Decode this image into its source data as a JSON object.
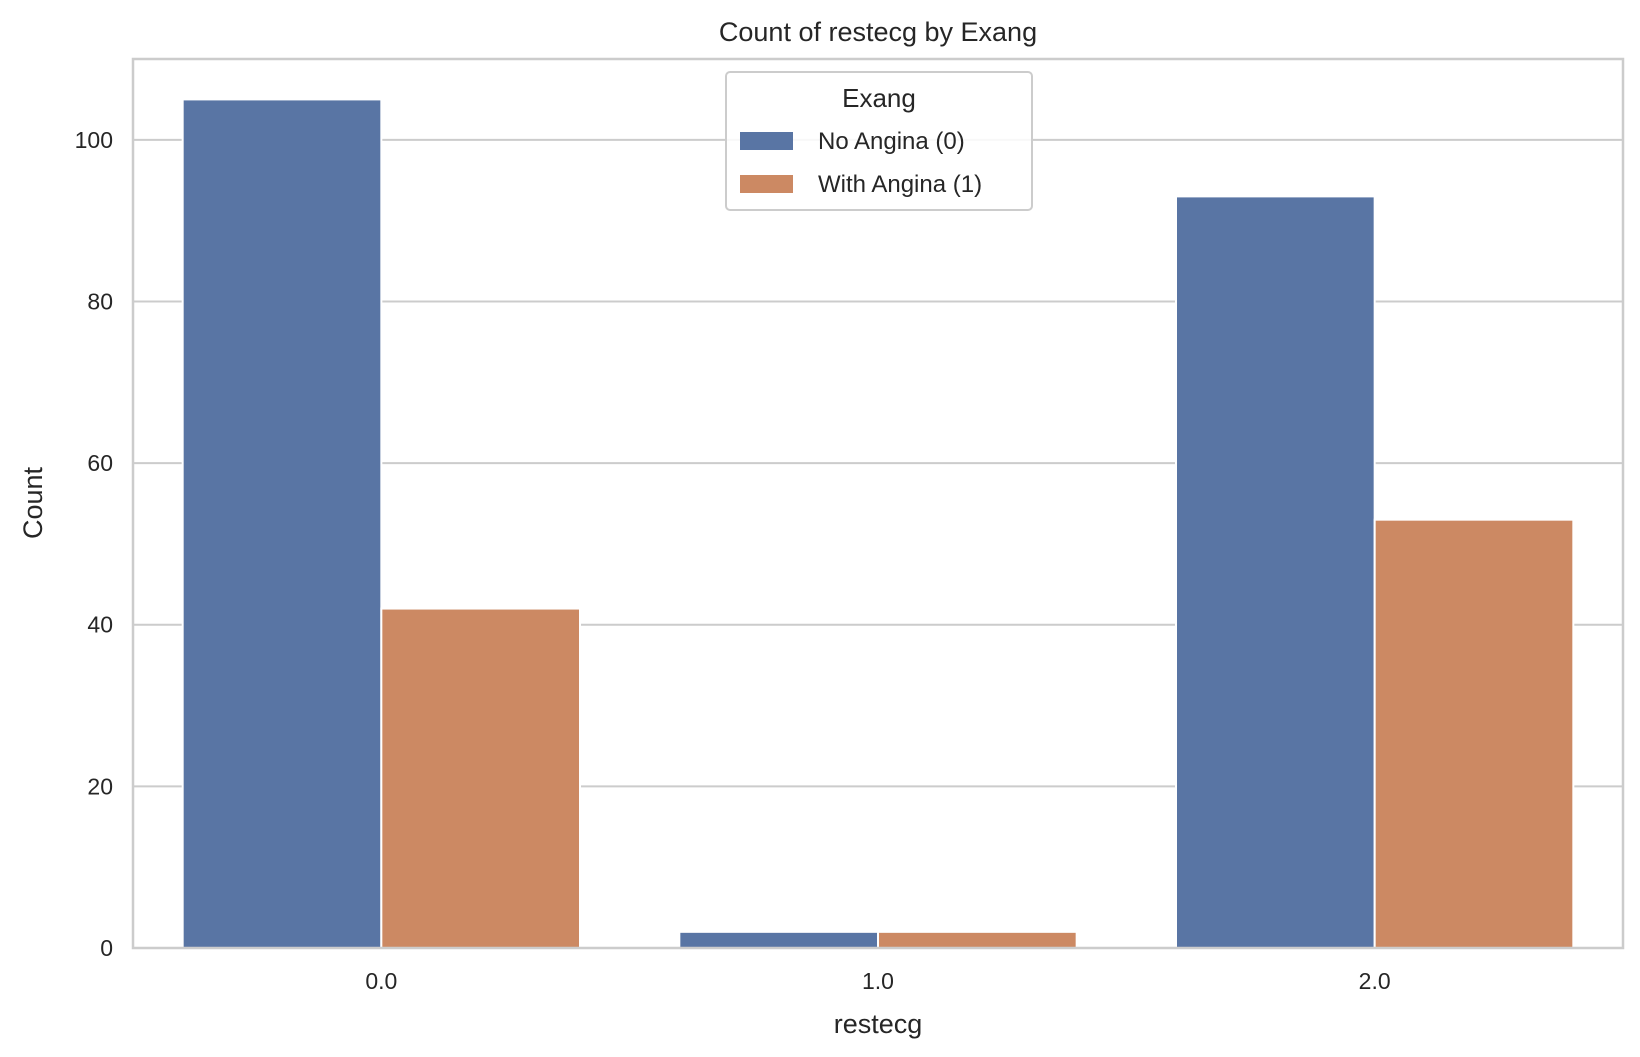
{
  "chart_data": {
    "type": "bar",
    "title": "Count of restecg by Exang",
    "xlabel": "restecg",
    "ylabel": "Count",
    "categories": [
      "0.0",
      "1.0",
      "2.0"
    ],
    "series": [
      {
        "name": "No Angina (0)",
        "color": "#5975a4",
        "values": [
          105,
          2,
          93
        ]
      },
      {
        "name": "With Angina (1)",
        "color": "#cc8963",
        "values": [
          42,
          2,
          53
        ]
      }
    ],
    "ylim": [
      0,
      110
    ],
    "yticks": [
      0,
      20,
      40,
      60,
      80,
      100
    ],
    "grid": true,
    "legend": {
      "title": "Exang",
      "placement": "upper-center"
    }
  }
}
